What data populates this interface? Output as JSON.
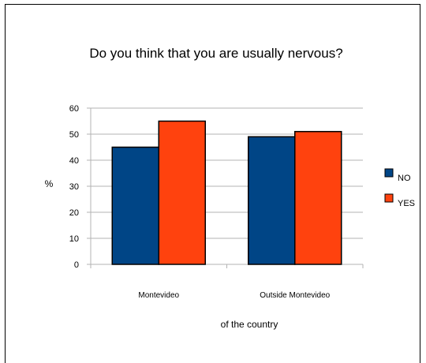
{
  "chart_data": {
    "type": "bar",
    "title": "Do you think that you are usually nervous?",
    "xlabel": "of the country",
    "ylabel": "%",
    "categories": [
      "Montevideo",
      "Outside Montevideo"
    ],
    "series": [
      {
        "name": "NO",
        "values": [
          45,
          49
        ],
        "color": "#004586"
      },
      {
        "name": "YES",
        "values": [
          55,
          51
        ],
        "color": "#ff420e"
      }
    ],
    "ylim": [
      0,
      60
    ],
    "yticks": [
      0,
      10,
      20,
      30,
      40,
      50,
      60
    ],
    "grid": true,
    "legend_position": "right"
  }
}
